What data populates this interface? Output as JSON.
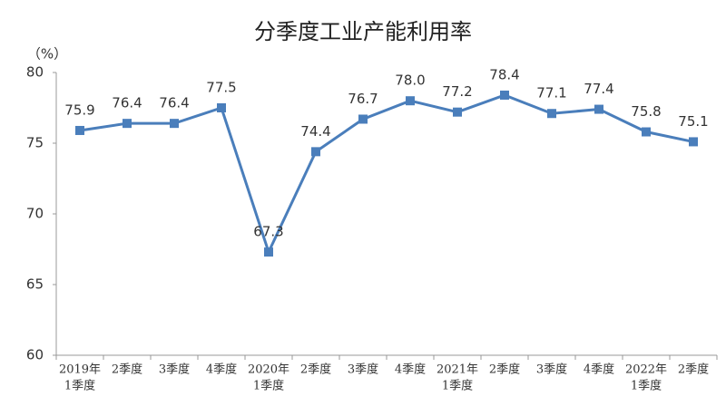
{
  "chart_data": {
    "type": "line",
    "title": "分季度工业产能利用率",
    "y_label": "（%）",
    "categories": [
      [
        "2019年",
        "1季度"
      ],
      [
        "2季度"
      ],
      [
        "3季度"
      ],
      [
        "4季度"
      ],
      [
        "2020年",
        "1季度"
      ],
      [
        "2季度"
      ],
      [
        "3季度"
      ],
      [
        "4季度"
      ],
      [
        "2021年",
        "1季度"
      ],
      [
        "2季度"
      ],
      [
        "3季度"
      ],
      [
        "4季度"
      ],
      [
        "2022年",
        "1季度"
      ],
      [
        "2季度"
      ]
    ],
    "values": [
      75.9,
      76.4,
      76.4,
      77.5,
      67.3,
      74.4,
      76.7,
      78.0,
      77.2,
      78.4,
      77.1,
      77.4,
      75.8,
      75.1
    ],
    "value_labels": [
      "75.9",
      "76.4",
      "76.4",
      "77.5",
      "67.3",
      "74.4",
      "76.7",
      "78.0",
      "77.2",
      "78.4",
      "77.1",
      "77.4",
      "75.8",
      "75.1"
    ],
    "color": "#4a7ebb",
    "ylim": [
      60,
      80
    ],
    "yticks": [
      60,
      65,
      70,
      75,
      80
    ],
    "grid": false
  }
}
